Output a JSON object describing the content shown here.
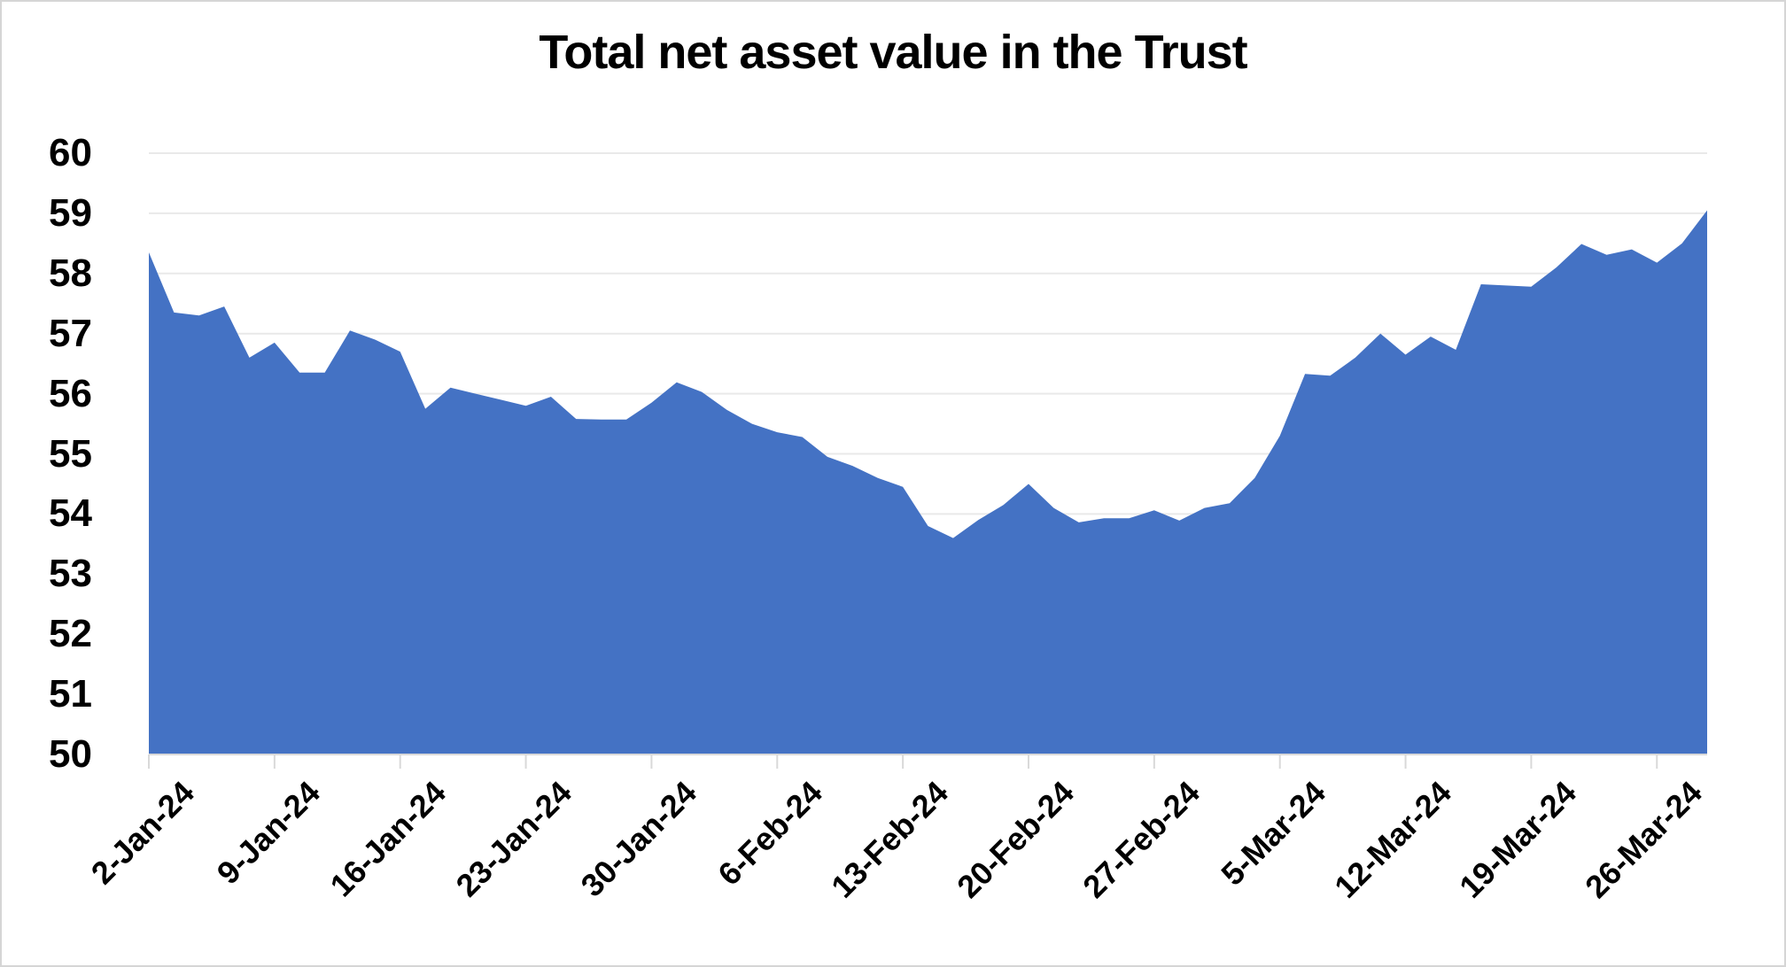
{
  "title": "Total net asset value in the Trust",
  "chart_data": {
    "type": "area",
    "title": "Total net asset value in the Trust",
    "xlabel": "",
    "ylabel": "",
    "ylim": [
      50,
      60
    ],
    "y_tick_step": 1,
    "y_tick_labels": [
      "50",
      "51",
      "52",
      "53",
      "54",
      "55",
      "56",
      "57",
      "58",
      "59",
      "60"
    ],
    "grid": "horizontal",
    "legend": "none",
    "x_label_interval": 5,
    "visible_x_tick_labels": [
      "2-Jan-24",
      "9-Jan-24",
      "16-Jan-24",
      "23-Jan-24",
      "30-Jan-24",
      "6-Feb-24",
      "13-Feb-24",
      "20-Feb-24",
      "27-Feb-24",
      "5-Mar-24",
      "12-Mar-24",
      "19-Mar-24",
      "26-Mar-24"
    ],
    "x": [
      "2-Jan-24",
      "3-Jan-24",
      "4-Jan-24",
      "5-Jan-24",
      "8-Jan-24",
      "9-Jan-24",
      "10-Jan-24",
      "11-Jan-24",
      "12-Jan-24",
      "15-Jan-24",
      "16-Jan-24",
      "17-Jan-24",
      "18-Jan-24",
      "19-Jan-24",
      "22-Jan-24",
      "23-Jan-24",
      "24-Jan-24",
      "25-Jan-24",
      "26-Jan-24",
      "29-Jan-24",
      "30-Jan-24",
      "31-Jan-24",
      "1-Feb-24",
      "2-Feb-24",
      "5-Feb-24",
      "6-Feb-24",
      "7-Feb-24",
      "8-Feb-24",
      "9-Feb-24",
      "12-Feb-24",
      "13-Feb-24",
      "14-Feb-24",
      "15-Feb-24",
      "16-Feb-24",
      "19-Feb-24",
      "20-Feb-24",
      "21-Feb-24",
      "22-Feb-24",
      "23-Feb-24",
      "26-Feb-24",
      "27-Feb-24",
      "28-Feb-24",
      "29-Feb-24",
      "1-Mar-24",
      "4-Mar-24",
      "5-Mar-24",
      "6-Mar-24",
      "7-Mar-24",
      "8-Mar-24",
      "11-Mar-24",
      "12-Mar-24",
      "13-Mar-24",
      "14-Mar-24",
      "15-Mar-24",
      "18-Mar-24",
      "19-Mar-24",
      "20-Mar-24",
      "21-Mar-24",
      "22-Mar-24",
      "25-Mar-24",
      "26-Mar-24",
      "27-Mar-24",
      "28-Mar-24"
    ],
    "values": [
      58.35,
      57.35,
      57.3,
      57.45,
      56.6,
      56.85,
      56.35,
      56.35,
      57.05,
      56.9,
      56.7,
      55.75,
      56.1,
      56.0,
      55.9,
      55.8,
      55.95,
      55.58,
      55.57,
      55.57,
      55.85,
      56.19,
      56.03,
      55.73,
      55.5,
      55.36,
      55.28,
      54.95,
      54.8,
      54.6,
      54.45,
      53.8,
      53.6,
      53.9,
      54.15,
      54.5,
      54.1,
      53.86,
      53.93,
      53.93,
      54.06,
      53.89,
      54.1,
      54.18,
      54.6,
      55.3,
      56.33,
      56.3,
      56.6,
      57.0,
      56.65,
      56.95,
      56.73,
      57.82,
      57.8,
      57.78,
      58.1,
      58.49,
      58.31,
      58.4,
      58.18,
      58.5,
      59.05
    ],
    "colors": {
      "area_fill": "#4472C4",
      "gridline": "#E9E9E9",
      "axis_line": "#D9D9D9",
      "tick_mark": "#D9D9D9",
      "text": "#000000",
      "background": "#FFFFFF"
    }
  }
}
